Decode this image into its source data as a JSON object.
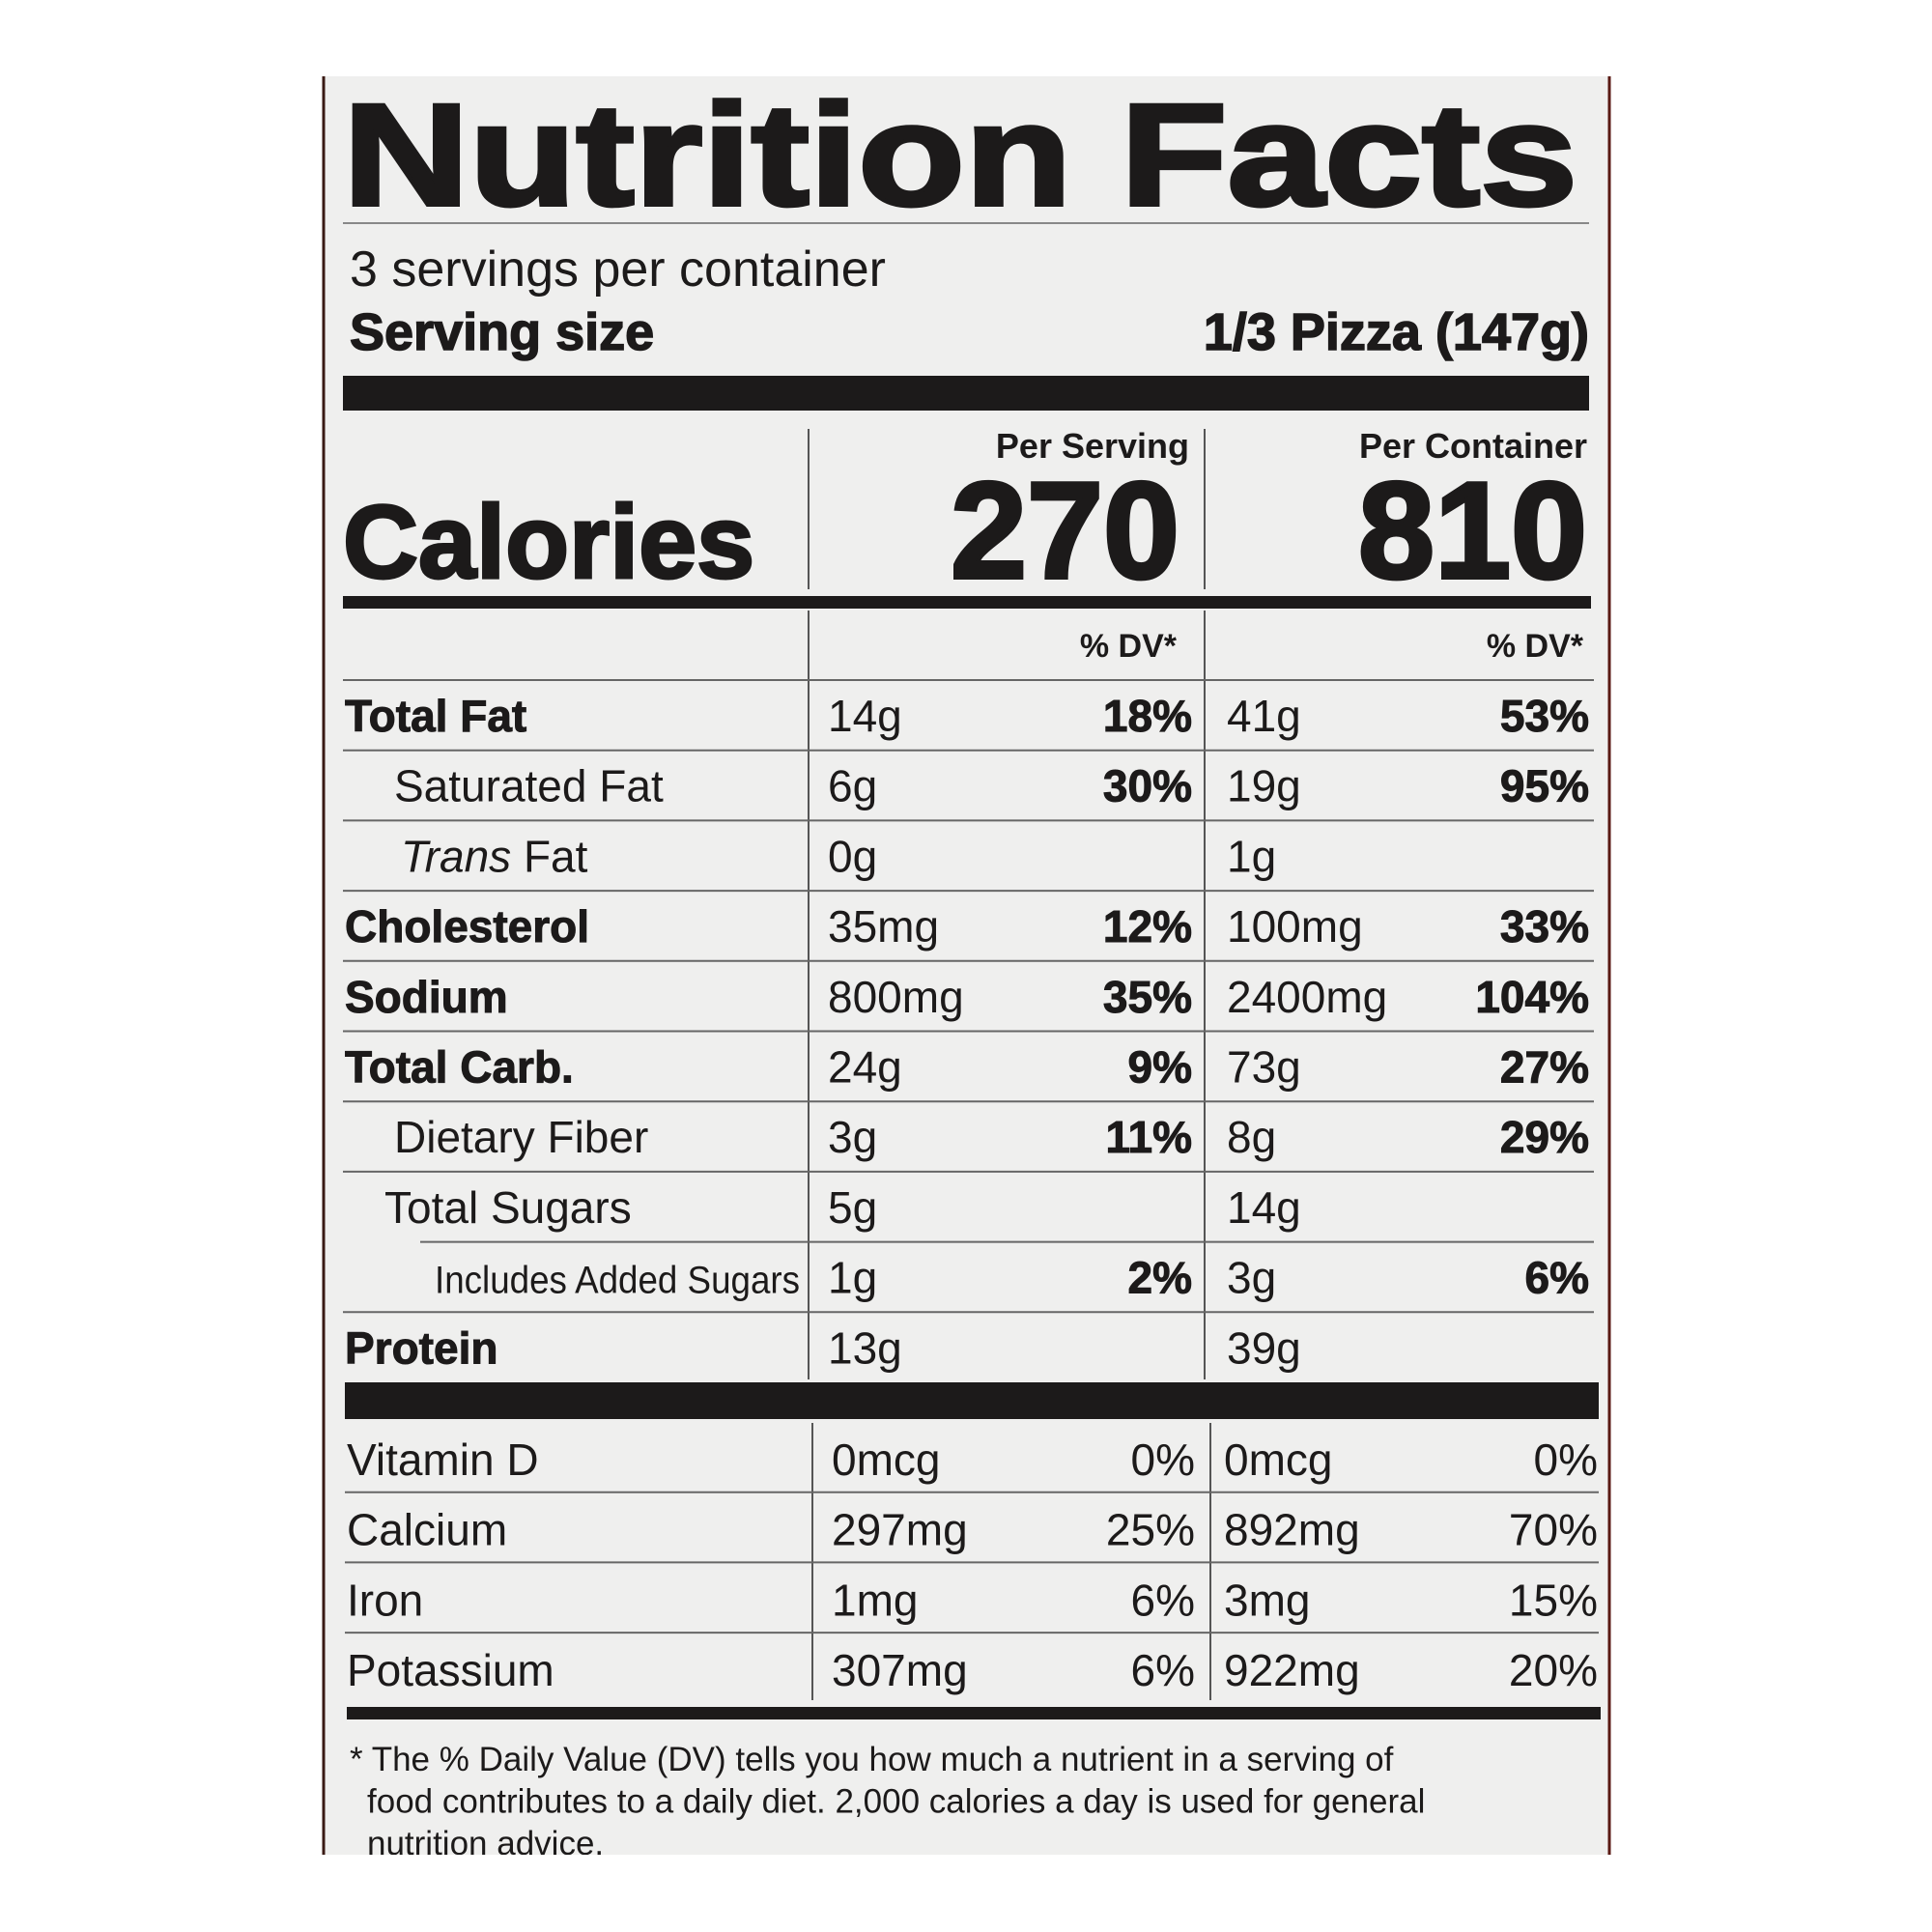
{
  "header": {
    "title": "Nutrition Facts",
    "servings": "3 servings per container",
    "serving_size_label": "Serving size",
    "serving_size": "1/3 Pizza (147g)"
  },
  "calories": {
    "label": "Calories",
    "per_serving_label": "Per Serving",
    "per_container_label": "Per Container",
    "per_serving": 270,
    "per_container": 810
  },
  "dv_header": [
    "% DV*",
    "% DV*"
  ],
  "nutrients": [
    {
      "name": "Total Fat",
      "per_serving": {
        "amount": "14g",
        "dv": "18%"
      },
      "per_container": {
        "amount": "41g",
        "dv": "53%"
      }
    },
    {
      "name": "Saturated Fat",
      "per_serving": {
        "amount": "6g",
        "dv": "30%"
      },
      "per_container": {
        "amount": "19g",
        "dv": "95%"
      }
    },
    {
      "name_italic": "Trans",
      "name": "Fat",
      "per_serving": {
        "amount": "0g"
      },
      "per_container": {
        "amount": "1g"
      }
    },
    {
      "name": "Cholesterol",
      "per_serving": {
        "amount": "35mg",
        "dv": "12%"
      },
      "per_container": {
        "amount": "100mg",
        "dv": "33%"
      }
    },
    {
      "name": "Sodium",
      "per_serving": {
        "amount": "800mg",
        "dv": "35%"
      },
      "per_container": {
        "amount": "2400mg",
        "dv": "104%"
      }
    },
    {
      "name": "Total Carb.",
      "per_serving": {
        "amount": "24g",
        "dv": "9%"
      },
      "per_container": {
        "amount": "73g",
        "dv": "27%"
      }
    },
    {
      "name": "Dietary Fiber",
      "per_serving": {
        "amount": "3g",
        "dv": "11%"
      },
      "per_container": {
        "amount": "8g",
        "dv": "29%"
      }
    },
    {
      "name": "Total Sugars",
      "per_serving": {
        "amount": "5g"
      },
      "per_container": {
        "amount": "14g"
      }
    },
    {
      "name": "Includes Added Sugars",
      "per_serving": {
        "amount": "1g",
        "dv": "2%"
      },
      "per_container": {
        "amount": "3g",
        "dv": "6%"
      }
    },
    {
      "name": "Protein",
      "per_serving": {
        "amount": "13g"
      },
      "per_container": {
        "amount": "39g"
      }
    }
  ],
  "vitamins": [
    {
      "name": "Vitamin D",
      "per_serving": {
        "amount": "0mcg",
        "dv": "0%"
      },
      "per_container": {
        "amount": "0mcg",
        "dv": "0%"
      }
    },
    {
      "name": "Calcium",
      "per_serving": {
        "amount": "297mg",
        "dv": "25%"
      },
      "per_container": {
        "amount": "892mg",
        "dv": "70%"
      }
    },
    {
      "name": "Iron",
      "per_serving": {
        "amount": "1mg",
        "dv": "6%"
      },
      "per_container": {
        "amount": "3mg",
        "dv": "15%"
      }
    },
    {
      "name": "Potassium",
      "per_serving": {
        "amount": "307mg",
        "dv": "6%"
      },
      "per_container": {
        "amount": "922mg",
        "dv": "20%"
      }
    }
  ],
  "footnote": [
    "* The % Daily Value (DV) tells you how much a nutrient in a serving of",
    "food contributes to a daily diet. 2,000 calories a day is used for general",
    "nutrition advice."
  ]
}
